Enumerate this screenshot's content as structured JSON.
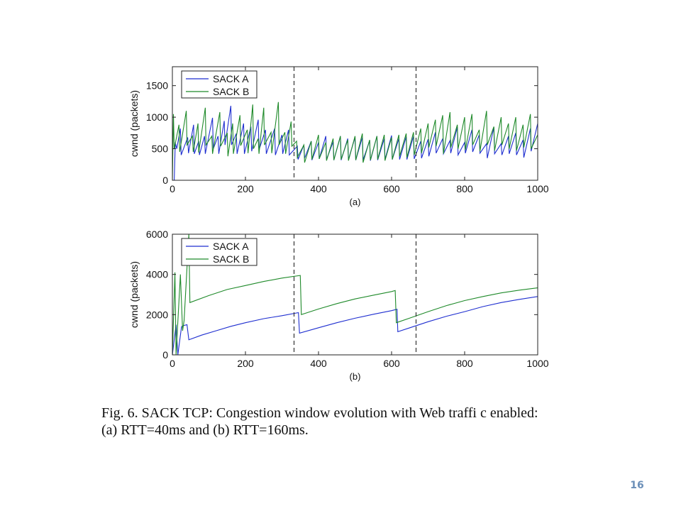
{
  "chart_data": [
    {
      "type": "line",
      "panel_label": "(a)",
      "ylabel": "cwnd (packets)",
      "xlim": [
        0,
        1000
      ],
      "ylim": [
        0,
        1800
      ],
      "xticks": [
        0,
        200,
        400,
        600,
        800,
        1000
      ],
      "yticks": [
        0,
        500,
        1000,
        1500
      ],
      "vlines": [
        333,
        667
      ],
      "legend": {
        "position": "top-left",
        "entries": [
          "SACK A",
          "SACK B"
        ]
      },
      "series": [
        {
          "name": "SACK A",
          "color": "#1f2fd0",
          "points": [
            [
              0,
              0
            ],
            [
              5,
              0
            ],
            [
              8,
              600
            ],
            [
              12,
              500
            ],
            [
              22,
              820
            ],
            [
              24,
              400
            ],
            [
              42,
              680
            ],
            [
              44,
              430
            ],
            [
              58,
              880
            ],
            [
              60,
              420
            ],
            [
              72,
              620
            ],
            [
              74,
              400
            ],
            [
              88,
              700
            ],
            [
              90,
              420
            ],
            [
              110,
              990
            ],
            [
              112,
              500
            ],
            [
              125,
              700
            ],
            [
              127,
              420
            ],
            [
              142,
              940
            ],
            [
              144,
              560
            ],
            [
              160,
              1180
            ],
            [
              162,
              560
            ],
            [
              175,
              740
            ],
            [
              177,
              420
            ],
            [
              195,
              900
            ],
            [
              197,
              420
            ],
            [
              215,
              850
            ],
            [
              217,
              460
            ],
            [
              235,
              960
            ],
            [
              237,
              480
            ],
            [
              255,
              800
            ],
            [
              257,
              420
            ],
            [
              280,
              820
            ],
            [
              282,
              400
            ],
            [
              300,
              720
            ],
            [
              302,
              420
            ],
            [
              318,
              800
            ],
            [
              320,
              400
            ],
            [
              342,
              540
            ],
            [
              344,
              330
            ],
            [
              360,
              560
            ],
            [
              362,
              350
            ],
            [
              380,
              620
            ],
            [
              382,
              320
            ],
            [
              400,
              600
            ],
            [
              402,
              340
            ],
            [
              420,
              700
            ],
            [
              422,
              330
            ],
            [
              440,
              610
            ],
            [
              442,
              320
            ],
            [
              460,
              700
            ],
            [
              462,
              320
            ],
            [
              480,
              660
            ],
            [
              482,
              330
            ],
            [
              500,
              680
            ],
            [
              502,
              320
            ],
            [
              520,
              680
            ],
            [
              522,
              320
            ],
            [
              540,
              630
            ],
            [
              542,
              310
            ],
            [
              560,
              700
            ],
            [
              562,
              320
            ],
            [
              580,
              660
            ],
            [
              582,
              330
            ],
            [
              600,
              710
            ],
            [
              602,
              330
            ],
            [
              620,
              660
            ],
            [
              622,
              330
            ],
            [
              640,
              690
            ],
            [
              642,
              330
            ],
            [
              660,
              700
            ],
            [
              662,
              340
            ],
            [
              680,
              620
            ],
            [
              682,
              350
            ],
            [
              700,
              650
            ],
            [
              702,
              380
            ],
            [
              720,
              760
            ],
            [
              722,
              430
            ],
            [
              740,
              660
            ],
            [
              742,
              420
            ],
            [
              760,
              630
            ],
            [
              762,
              430
            ],
            [
              780,
              840
            ],
            [
              782,
              400
            ],
            [
              800,
              600
            ],
            [
              802,
              430
            ],
            [
              820,
              800
            ],
            [
              822,
              450
            ],
            [
              840,
              720
            ],
            [
              842,
              430
            ],
            [
              860,
              580
            ],
            [
              862,
              350
            ],
            [
              880,
              840
            ],
            [
              882,
              420
            ],
            [
              900,
              580
            ],
            [
              902,
              400
            ],
            [
              920,
              700
            ],
            [
              922,
              420
            ],
            [
              940,
              750
            ],
            [
              942,
              400
            ],
            [
              960,
              640
            ],
            [
              962,
              360
            ],
            [
              980,
              820
            ],
            [
              982,
              460
            ],
            [
              1000,
              900
            ]
          ]
        },
        {
          "name": "SACK B",
          "color": "#1f8a2a",
          "points": [
            [
              0,
              0
            ],
            [
              3,
              1050
            ],
            [
              5,
              500
            ],
            [
              18,
              880
            ],
            [
              20,
              450
            ],
            [
              38,
              1100
            ],
            [
              40,
              560
            ],
            [
              55,
              700
            ],
            [
              57,
              450
            ],
            [
              70,
              900
            ],
            [
              72,
              440
            ],
            [
              90,
              1150
            ],
            [
              92,
              560
            ],
            [
              108,
              700
            ],
            [
              110,
              420
            ],
            [
              130,
              1080
            ],
            [
              132,
              540
            ],
            [
              150,
              750
            ],
            [
              152,
              380
            ],
            [
              165,
              900
            ],
            [
              167,
              420
            ],
            [
              185,
              1030
            ],
            [
              187,
              550
            ],
            [
              205,
              800
            ],
            [
              207,
              430
            ],
            [
              220,
              1200
            ],
            [
              222,
              500
            ],
            [
              235,
              660
            ],
            [
              237,
              420
            ],
            [
              250,
              1150
            ],
            [
              252,
              560
            ],
            [
              270,
              760
            ],
            [
              272,
              430
            ],
            [
              290,
              1240
            ],
            [
              292,
              560
            ],
            [
              308,
              760
            ],
            [
              310,
              420
            ],
            [
              325,
              930
            ],
            [
              327,
              540
            ],
            [
              340,
              620
            ],
            [
              342,
              360
            ],
            [
              360,
              560
            ],
            [
              362,
              280
            ],
            [
              380,
              620
            ],
            [
              382,
              330
            ],
            [
              400,
              720
            ],
            [
              402,
              340
            ],
            [
              420,
              600
            ],
            [
              422,
              310
            ],
            [
              440,
              660
            ],
            [
              442,
              320
            ],
            [
              460,
              700
            ],
            [
              462,
              330
            ],
            [
              480,
              640
            ],
            [
              482,
              310
            ],
            [
              500,
              700
            ],
            [
              502,
              320
            ],
            [
              520,
              740
            ],
            [
              522,
              280
            ],
            [
              540,
              640
            ],
            [
              542,
              320
            ],
            [
              560,
              700
            ],
            [
              562,
              330
            ],
            [
              580,
              720
            ],
            [
              582,
              310
            ],
            [
              600,
              680
            ],
            [
              602,
              330
            ],
            [
              620,
              720
            ],
            [
              622,
              380
            ],
            [
              640,
              740
            ],
            [
              642,
              360
            ],
            [
              660,
              760
            ],
            [
              662,
              400
            ],
            [
              680,
              820
            ],
            [
              682,
              430
            ],
            [
              700,
              900
            ],
            [
              702,
              520
            ],
            [
              720,
              960
            ],
            [
              722,
              540
            ],
            [
              740,
              1030
            ],
            [
              742,
              420
            ],
            [
              760,
              1080
            ],
            [
              762,
              520
            ],
            [
              780,
              880
            ],
            [
              782,
              500
            ],
            [
              800,
              1000
            ],
            [
              802,
              480
            ],
            [
              820,
              1050
            ],
            [
              822,
              560
            ],
            [
              840,
              800
            ],
            [
              842,
              460
            ],
            [
              860,
              1100
            ],
            [
              862,
              560
            ],
            [
              880,
              850
            ],
            [
              882,
              470
            ],
            [
              900,
              1000
            ],
            [
              902,
              560
            ],
            [
              920,
              900
            ],
            [
              922,
              500
            ],
            [
              940,
              1000
            ],
            [
              942,
              470
            ],
            [
              960,
              880
            ],
            [
              962,
              520
            ],
            [
              980,
              1050
            ],
            [
              982,
              500
            ],
            [
              1000,
              720
            ]
          ]
        }
      ]
    },
    {
      "type": "line",
      "panel_label": "(b)",
      "ylabel": "cwnd (packets)",
      "xlim": [
        0,
        1000
      ],
      "ylim": [
        0,
        6000
      ],
      "xticks": [
        0,
        200,
        400,
        600,
        800,
        1000
      ],
      "yticks": [
        0,
        2000,
        4000,
        6000
      ],
      "vlines": [
        333,
        667
      ],
      "legend": {
        "position": "top-left",
        "entries": [
          "SACK A",
          "SACK B"
        ]
      },
      "series": [
        {
          "name": "SACK A",
          "color": "#1f2fd0",
          "points": [
            [
              0,
              0
            ],
            [
              10,
              1500
            ],
            [
              15,
              0
            ],
            [
              25,
              1400
            ],
            [
              30,
              1450
            ],
            [
              40,
              1500
            ],
            [
              45,
              750
            ],
            [
              80,
              980
            ],
            [
              120,
              1200
            ],
            [
              160,
              1420
            ],
            [
              200,
              1600
            ],
            [
              250,
              1800
            ],
            [
              300,
              1950
            ],
            [
              345,
              2100
            ],
            [
              348,
              1080
            ],
            [
              400,
              1350
            ],
            [
              450,
              1600
            ],
            [
              500,
              1820
            ],
            [
              550,
              2020
            ],
            [
              600,
              2200
            ],
            [
              615,
              2270
            ],
            [
              617,
              1150
            ],
            [
              650,
              1350
            ],
            [
              700,
              1650
            ],
            [
              750,
              1920
            ],
            [
              800,
              2150
            ],
            [
              850,
              2400
            ],
            [
              900,
              2600
            ],
            [
              950,
              2760
            ],
            [
              1000,
              2900
            ]
          ]
        },
        {
          "name": "SACK B",
          "color": "#1f8a2a",
          "points": [
            [
              0,
              0
            ],
            [
              7,
              4100
            ],
            [
              10,
              0
            ],
            [
              22,
              4000
            ],
            [
              28,
              1200
            ],
            [
              32,
              1700
            ],
            [
              45,
              6000
            ],
            [
              48,
              2600
            ],
            [
              100,
              2950
            ],
            [
              150,
              3250
            ],
            [
              200,
              3450
            ],
            [
              250,
              3650
            ],
            [
              300,
              3820
            ],
            [
              350,
              3950
            ],
            [
              353,
              2000
            ],
            [
              400,
              2280
            ],
            [
              450,
              2550
            ],
            [
              500,
              2780
            ],
            [
              550,
              2970
            ],
            [
              600,
              3150
            ],
            [
              610,
              3200
            ],
            [
              613,
              1600
            ],
            [
              650,
              1830
            ],
            [
              700,
              2150
            ],
            [
              750,
              2450
            ],
            [
              800,
              2700
            ],
            [
              850,
              2900
            ],
            [
              900,
              3080
            ],
            [
              950,
              3220
            ],
            [
              1000,
              3330
            ]
          ]
        }
      ]
    }
  ],
  "caption": {
    "line1": "Fig. 6.   SACK TCP: Congestion window evolution with Web traffi c enabled:",
    "line2": "(a)  RTT=40ms and (b)  RTT=160ms."
  },
  "page_number": "16"
}
